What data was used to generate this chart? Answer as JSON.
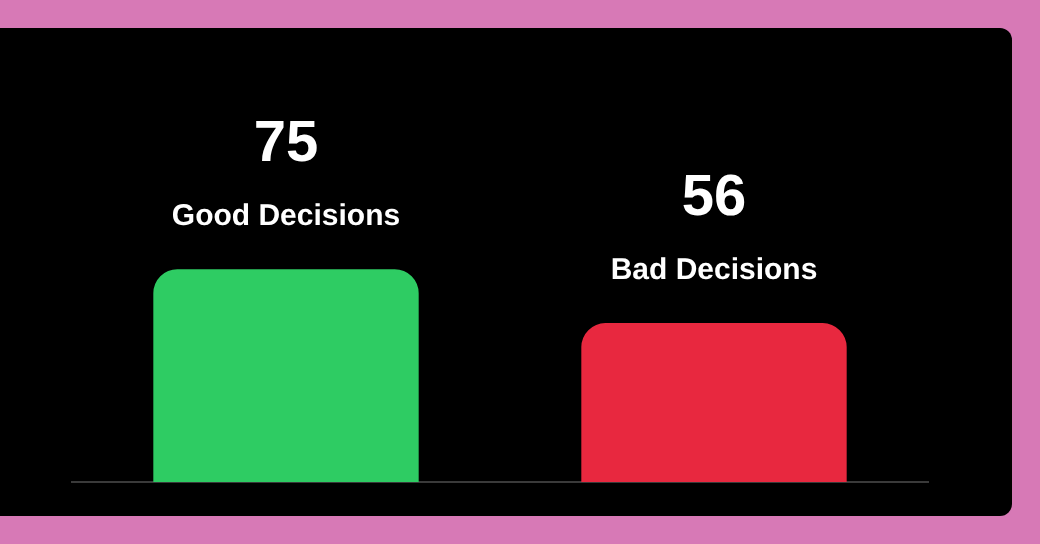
{
  "chart_data": {
    "type": "bar",
    "categories": [
      "Good Decisions",
      "Bad Decisions"
    ],
    "values": [
      75,
      56
    ],
    "colors": [
      "#2ecc63",
      "#e8283f"
    ],
    "ylim": [
      0,
      160
    ],
    "data_labels": true,
    "tick_labels": "x",
    "legend": false
  }
}
